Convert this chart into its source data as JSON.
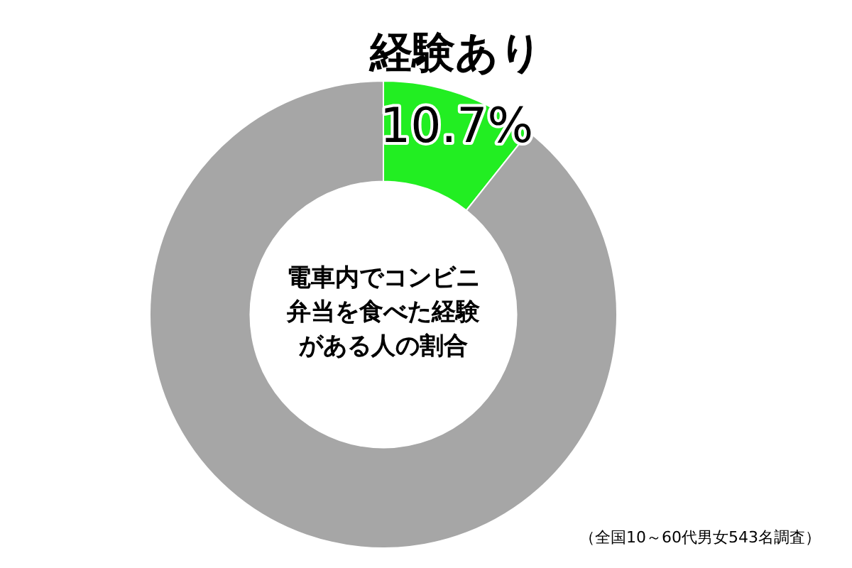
{
  "chart_data": {
    "type": "donut",
    "title": "電車内でコンビニ弁当を食べた経験がある人の割合",
    "categories": [
      "経験あり",
      null
    ],
    "values": [
      10.7,
      89.3
    ],
    "value_labels": [
      "10.7%",
      null
    ],
    "colors": [
      "#22ee22",
      "#a6a6a6"
    ],
    "annotations": [
      "（全国10～60代男女543名調査）"
    ],
    "legend": false
  }
}
